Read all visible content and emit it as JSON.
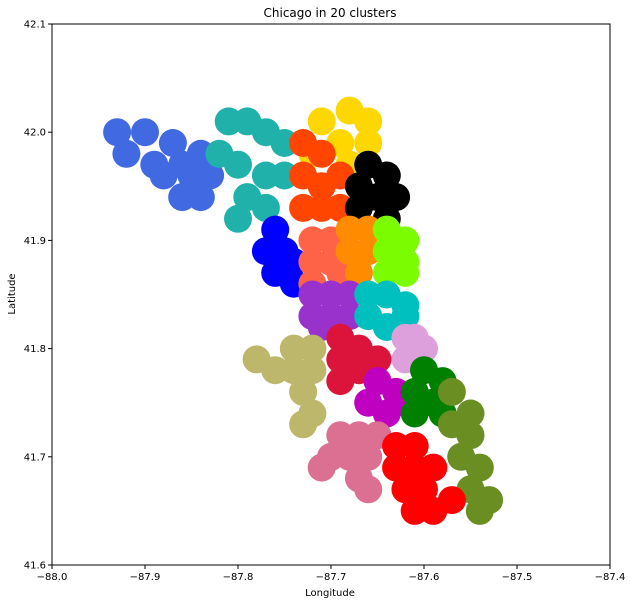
{
  "chart_data": {
    "type": "scatter",
    "title": "Chicago in 20 clusters",
    "xlabel": "Longitude",
    "ylabel": "Latitude",
    "xlim": [
      -88.0,
      -87.4
    ],
    "ylim": [
      41.6,
      42.1
    ],
    "grid": false,
    "x_ticks": [
      {
        "value": -88.0,
        "label": "−88.0"
      },
      {
        "value": -87.9,
        "label": "−87.9"
      },
      {
        "value": -87.8,
        "label": "−87.8"
      },
      {
        "value": -87.7,
        "label": "−87.7"
      },
      {
        "value": -87.6,
        "label": "−87.6"
      },
      {
        "value": -87.5,
        "label": "−87.5"
      },
      {
        "value": -87.4,
        "label": "−87.4"
      }
    ],
    "y_ticks": [
      {
        "value": 41.6,
        "label": "41.6"
      },
      {
        "value": 41.7,
        "label": "41.7"
      },
      {
        "value": 41.8,
        "label": "41.8"
      },
      {
        "value": 41.9,
        "label": "41.9"
      },
      {
        "value": 42.0,
        "label": "42.0"
      },
      {
        "value": 42.1,
        "label": "42.1"
      }
    ],
    "clusters": [
      {
        "id": 1,
        "color": "#4169e1",
        "points": [
          [
            -87.93,
            42.0
          ],
          [
            -87.92,
            41.98
          ],
          [
            -87.9,
            42.0
          ],
          [
            -87.89,
            41.97
          ],
          [
            -87.88,
            41.96
          ],
          [
            -87.87,
            41.99
          ],
          [
            -87.86,
            41.97
          ],
          [
            -87.85,
            41.96
          ],
          [
            -87.84,
            41.98
          ],
          [
            -87.84,
            41.94
          ],
          [
            -87.83,
            41.96
          ],
          [
            -87.86,
            41.94
          ]
        ]
      },
      {
        "id": 2,
        "color": "#20b2aa",
        "points": [
          [
            -87.81,
            42.01
          ],
          [
            -87.79,
            42.01
          ],
          [
            -87.77,
            42.0
          ],
          [
            -87.75,
            41.99
          ],
          [
            -87.82,
            41.98
          ],
          [
            -87.8,
            41.97
          ],
          [
            -87.77,
            41.96
          ],
          [
            -87.75,
            41.96
          ],
          [
            -87.79,
            41.94
          ],
          [
            -87.77,
            41.93
          ],
          [
            -87.8,
            41.92
          ]
        ]
      },
      {
        "id": 3,
        "color": "#ffd700",
        "points": [
          [
            -87.71,
            42.01
          ],
          [
            -87.68,
            42.02
          ],
          [
            -87.66,
            42.01
          ],
          [
            -87.69,
            41.99
          ],
          [
            -87.66,
            41.99
          ],
          [
            -87.68,
            41.97
          ],
          [
            -87.72,
            41.98
          ]
        ]
      },
      {
        "id": 4,
        "color": "#ff4500",
        "points": [
          [
            -87.73,
            41.99
          ],
          [
            -87.71,
            41.98
          ],
          [
            -87.73,
            41.96
          ],
          [
            -87.71,
            41.95
          ],
          [
            -87.69,
            41.96
          ],
          [
            -87.73,
            41.93
          ],
          [
            -87.71,
            41.93
          ],
          [
            -87.69,
            41.93
          ]
        ]
      },
      {
        "id": 5,
        "color": "#000000",
        "points": [
          [
            -87.66,
            41.97
          ],
          [
            -87.64,
            41.96
          ],
          [
            -87.67,
            41.95
          ],
          [
            -87.65,
            41.94
          ],
          [
            -87.63,
            41.94
          ],
          [
            -87.67,
            41.93
          ],
          [
            -87.64,
            41.92
          ]
        ]
      },
      {
        "id": 6,
        "color": "#0000ff",
        "points": [
          [
            -87.76,
            41.91
          ],
          [
            -87.75,
            41.89
          ],
          [
            -87.74,
            41.88
          ],
          [
            -87.76,
            41.87
          ],
          [
            -87.74,
            41.86
          ],
          [
            -87.77,
            41.89
          ]
        ]
      },
      {
        "id": 7,
        "color": "#ff6347",
        "points": [
          [
            -87.72,
            41.9
          ],
          [
            -87.7,
            41.9
          ],
          [
            -87.72,
            41.88
          ],
          [
            -87.7,
            41.88
          ],
          [
            -87.72,
            41.86
          ],
          [
            -87.69,
            41.87
          ]
        ]
      },
      {
        "id": 8,
        "color": "#ff8c00",
        "points": [
          [
            -87.68,
            41.91
          ],
          [
            -87.66,
            41.91
          ],
          [
            -87.68,
            41.89
          ],
          [
            -87.66,
            41.89
          ],
          [
            -87.67,
            41.87
          ]
        ]
      },
      {
        "id": 9,
        "color": "#7cfc00",
        "points": [
          [
            -87.64,
            41.91
          ],
          [
            -87.62,
            41.9
          ],
          [
            -87.64,
            41.89
          ],
          [
            -87.62,
            41.88
          ],
          [
            -87.64,
            41.87
          ],
          [
            -87.62,
            41.87
          ]
        ]
      },
      {
        "id": 10,
        "color": "#9932cc",
        "points": [
          [
            -87.72,
            41.85
          ],
          [
            -87.7,
            41.85
          ],
          [
            -87.68,
            41.85
          ],
          [
            -87.72,
            41.83
          ],
          [
            -87.7,
            41.83
          ],
          [
            -87.68,
            41.83
          ],
          [
            -87.71,
            41.82
          ]
        ]
      },
      {
        "id": 11,
        "color": "#00bfbf",
        "points": [
          [
            -87.66,
            41.85
          ],
          [
            -87.64,
            41.85
          ],
          [
            -87.62,
            41.84
          ],
          [
            -87.66,
            41.83
          ],
          [
            -87.64,
            41.82
          ],
          [
            -87.62,
            41.83
          ]
        ]
      },
      {
        "id": 12,
        "color": "#dda0dd",
        "points": [
          [
            -87.61,
            41.81
          ],
          [
            -87.6,
            41.8
          ],
          [
            -87.62,
            41.79
          ],
          [
            -87.6,
            41.78
          ],
          [
            -87.62,
            41.81
          ]
        ]
      },
      {
        "id": 13,
        "color": "#bdb76b",
        "points": [
          [
            -87.74,
            41.8
          ],
          [
            -87.72,
            41.8
          ],
          [
            -87.78,
            41.79
          ],
          [
            -87.76,
            41.78
          ],
          [
            -87.74,
            41.78
          ],
          [
            -87.72,
            41.78
          ],
          [
            -87.73,
            41.76
          ],
          [
            -87.72,
            41.74
          ],
          [
            -87.73,
            41.73
          ]
        ]
      },
      {
        "id": 14,
        "color": "#dc143c",
        "points": [
          [
            -87.69,
            41.81
          ],
          [
            -87.67,
            41.8
          ],
          [
            -87.69,
            41.79
          ],
          [
            -87.67,
            41.78
          ],
          [
            -87.69,
            41.77
          ],
          [
            -87.65,
            41.79
          ]
        ]
      },
      {
        "id": 15,
        "color": "#c000c0",
        "points": [
          [
            -87.65,
            41.77
          ],
          [
            -87.63,
            41.76
          ],
          [
            -87.66,
            41.75
          ],
          [
            -87.64,
            41.74
          ],
          [
            -87.62,
            41.75
          ]
        ]
      },
      {
        "id": 16,
        "color": "#008000",
        "points": [
          [
            -87.6,
            41.78
          ],
          [
            -87.58,
            41.77
          ],
          [
            -87.61,
            41.76
          ],
          [
            -87.59,
            41.75
          ],
          [
            -87.61,
            41.74
          ],
          [
            -87.58,
            41.74
          ]
        ]
      },
      {
        "id": 17,
        "color": "#6b8e23",
        "points": [
          [
            -87.57,
            41.76
          ],
          [
            -87.55,
            41.74
          ],
          [
            -87.57,
            41.73
          ],
          [
            -87.55,
            41.72
          ],
          [
            -87.56,
            41.7
          ],
          [
            -87.54,
            41.69
          ],
          [
            -87.55,
            41.67
          ],
          [
            -87.53,
            41.66
          ],
          [
            -87.54,
            41.65
          ]
        ]
      },
      {
        "id": 18,
        "color": "#db7093",
        "points": [
          [
            -87.69,
            41.72
          ],
          [
            -87.67,
            41.72
          ],
          [
            -87.65,
            41.72
          ],
          [
            -87.7,
            41.7
          ],
          [
            -87.68,
            41.7
          ],
          [
            -87.66,
            41.7
          ],
          [
            -87.67,
            41.68
          ],
          [
            -87.66,
            41.67
          ],
          [
            -87.71,
            41.69
          ]
        ]
      },
      {
        "id": 19,
        "color": "#ff0000",
        "points": [
          [
            -87.63,
            41.71
          ],
          [
            -87.61,
            41.71
          ],
          [
            -87.63,
            41.69
          ],
          [
            -87.61,
            41.69
          ],
          [
            -87.59,
            41.69
          ],
          [
            -87.62,
            41.67
          ],
          [
            -87.6,
            41.67
          ],
          [
            -87.61,
            41.65
          ],
          [
            -87.59,
            41.65
          ],
          [
            -87.57,
            41.66
          ]
        ]
      },
      {
        "id": 20,
        "color": "#32cd32",
        "points": []
      }
    ]
  }
}
